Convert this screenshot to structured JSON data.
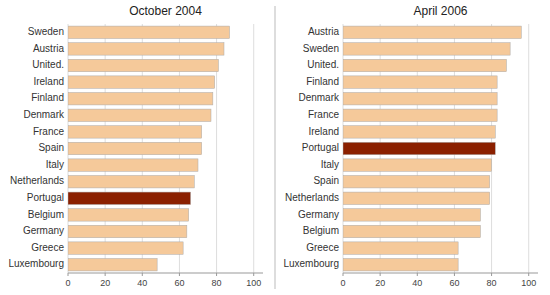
{
  "chart_data": [
    {
      "type": "bar",
      "orientation": "horizontal",
      "title": "October 2004",
      "categories": [
        "Sweden",
        "Austria",
        "United.",
        "Ireland",
        "Finland",
        "Denmark",
        "France",
        "Spain",
        "Italy",
        "Netherlands",
        "Portugal",
        "Belgium",
        "Germany",
        "Greece",
        "Luxembourg"
      ],
      "values": [
        87,
        84,
        81,
        79,
        78,
        77,
        72,
        72,
        70,
        68,
        66,
        65,
        64,
        62,
        48
      ],
      "colors": [
        "#F5C99A",
        "#F5C99A",
        "#F5C99A",
        "#F5C99A",
        "#F5C99A",
        "#F5C99A",
        "#F5C99A",
        "#F5C99A",
        "#F5C99A",
        "#F5C99A",
        "#8B2000",
        "#F5C99A",
        "#F5C99A",
        "#F5C99A",
        "#F5C99A"
      ],
      "xlim": [
        0,
        105
      ],
      "xticks": [
        0,
        20,
        40,
        60,
        80,
        100
      ],
      "grid": true
    },
    {
      "type": "bar",
      "orientation": "horizontal",
      "title": "April 2006",
      "categories": [
        "Austria",
        "Sweden",
        "United.",
        "Finland",
        "Denmark",
        "France",
        "Ireland",
        "Portugal",
        "Italy",
        "Spain",
        "Netherlands",
        "Germany",
        "Belgium",
        "Greece",
        "Luxembourg"
      ],
      "values": [
        96,
        90,
        88,
        83,
        83,
        83,
        82,
        82,
        80,
        79,
        79,
        74,
        74,
        62,
        62
      ],
      "colors": [
        "#F5C99A",
        "#F5C99A",
        "#F5C99A",
        "#F5C99A",
        "#F5C99A",
        "#F5C99A",
        "#F5C99A",
        "#8B2000",
        "#F5C99A",
        "#F5C99A",
        "#F5C99A",
        "#F5C99A",
        "#F5C99A",
        "#F5C99A",
        "#F5C99A"
      ],
      "xlim": [
        0,
        105
      ],
      "xticks": [
        0,
        20,
        40,
        60,
        80,
        100
      ],
      "grid": true
    }
  ]
}
